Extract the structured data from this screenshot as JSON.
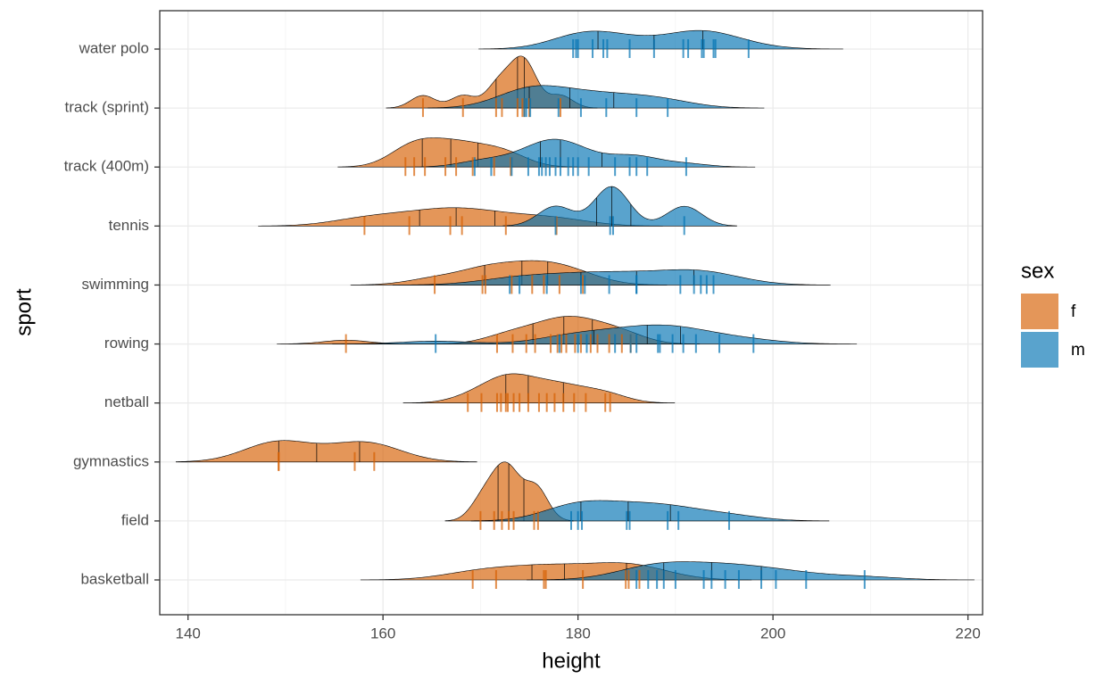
{
  "chart_data": {
    "type": "ridgeline",
    "xlabel": "height",
    "ylabel": "sport",
    "categories": [
      "basketball",
      "field",
      "gymnastics",
      "netball",
      "rowing",
      "swimming",
      "tennis",
      "track (400m)",
      "track (sprint)",
      "water polo"
    ],
    "series": [
      {
        "name": "f",
        "color": "#d55e00",
        "values": [
          [
            169.2,
            171.6,
            176.5,
            176.7,
            180.5,
            184.9,
            185.2,
            186.3
          ],
          [
            170,
            171.4,
            172.2,
            172.9,
            173.4,
            175.5,
            175.9
          ],
          [
            149.3,
            149.3,
            157.1,
            159.1
          ],
          [
            168.7,
            170.1,
            171.7,
            172.1,
            172.6,
            172.8,
            173.4,
            174,
            174.9,
            176,
            176.8,
            177.6,
            178.5,
            179.6,
            180.8,
            182.8,
            183.3
          ],
          [
            156.2,
            171.7,
            173.3,
            174.7,
            175.6,
            177.2,
            177.9,
            178.3,
            178.8,
            179.7,
            180.3,
            181.3,
            182,
            183.2,
            184.5,
            185.4
          ],
          [
            165.3,
            170.2,
            170.5,
            173.2,
            175.3,
            176.5,
            178.1,
            180.5
          ],
          [
            158.1,
            162.7,
            166.9,
            168.1,
            172.6,
            177.8
          ],
          [
            162.3,
            163.2,
            164.3,
            166.4,
            167.5,
            169.2,
            171.4,
            173.1
          ],
          [
            164.1,
            168.2,
            171.6,
            172.2,
            173.8,
            174.3,
            174.5,
            175,
            178.2
          ],
          []
        ]
      },
      {
        "name": "m",
        "color": "#0072b2",
        "values": [
          [
            186,
            187.2,
            188.1,
            188.8,
            190,
            192.9,
            193.7,
            195.1,
            196.5,
            198.8,
            200.3,
            203.4,
            209.4
          ],
          [
            179.3,
            180,
            180.4,
            185,
            185.3,
            189.2,
            190.3,
            195.5
          ],
          [],
          [],
          [
            165.4,
            178.1,
            180,
            180.9,
            183.8,
            185.4,
            186,
            188.2,
            188.4,
            189.7,
            190.8,
            192.1,
            194.5,
            198
          ],
          [
            173,
            174,
            176.8,
            180.3,
            180.7,
            183.2,
            186,
            186,
            190.5,
            191.9,
            192.6,
            193.2,
            193.9
          ],
          [
            177.7,
            183.3,
            183.6,
            190.9
          ],
          [
            169.4,
            171.1,
            173.2,
            174.9,
            176,
            176.3,
            176.7,
            177.1,
            177.7,
            178.2,
            179,
            179.5,
            180,
            181.1,
            183.8,
            185.3,
            186,
            187.1,
            191.1
          ],
          [
            174.5,
            174.7,
            175.1,
            178,
            180.3,
            182.9,
            186,
            189.2
          ],
          [
            179.5,
            179.8,
            180,
            181.5,
            182.6,
            183,
            185.3,
            187.8,
            190.8,
            191.3,
            192.7,
            192.9,
            193.9,
            194.1,
            197.5
          ]
        ]
      }
    ],
    "xlim": [
      137.1,
      221.5
    ],
    "xticks": [
      140,
      160,
      180,
      200,
      220
    ],
    "legend_title": "sex",
    "legend": "right",
    "grid": true
  }
}
